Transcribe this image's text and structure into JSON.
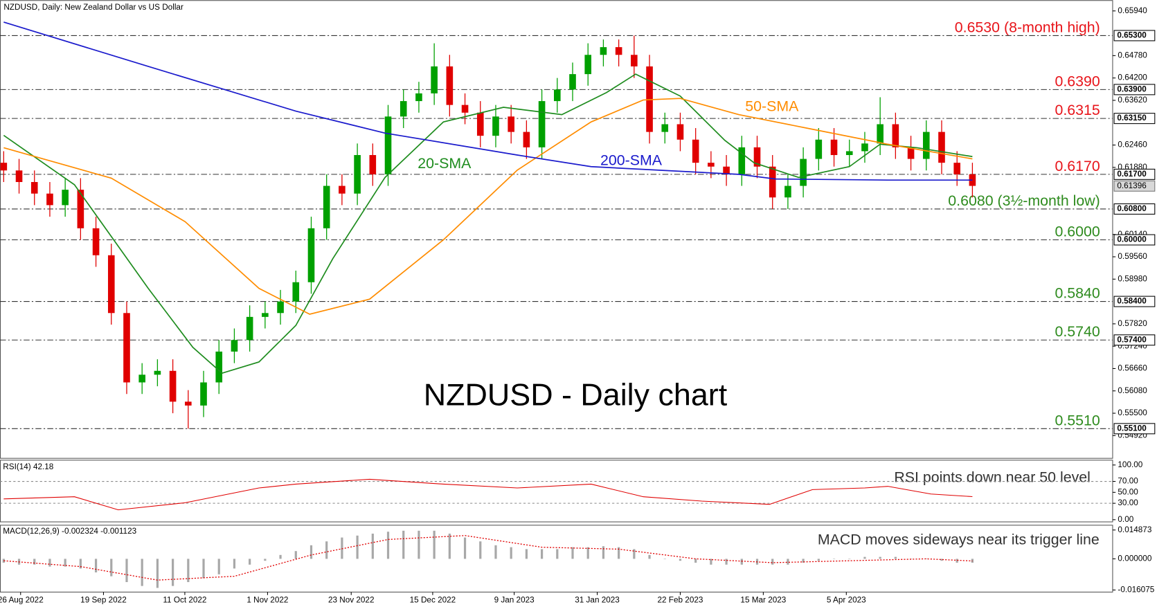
{
  "chart_data": [
    {
      "type": "candlestick",
      "header": "NZDUSD, Daily:  New Zealand Dollar vs US Dollar",
      "title": "NZDUSD - Daily chart",
      "xlim": [
        -0.24,
        72.12
      ],
      "ylim": [
        0.5433,
        0.6622
      ],
      "xticks": [
        {
          "value": 1.1,
          "label": "26 Aug 2022"
        },
        {
          "value": 6.49,
          "label": "19 Sep 2022"
        },
        {
          "value": 11.78,
          "label": "11 Oct 2022"
        },
        {
          "value": 17.16,
          "label": "1 Nov 2022"
        },
        {
          "value": 22.6,
          "label": "23 Nov 2022"
        },
        {
          "value": 27.9,
          "label": "15 Dec 2022"
        },
        {
          "value": 33.2,
          "label": "9 Jan 2023"
        },
        {
          "value": 38.6,
          "label": "31 Jan 2023"
        },
        {
          "value": 44.0,
          "label": "22 Feb 2023"
        },
        {
          "value": 49.4,
          "label": "15 Mar 2023"
        },
        {
          "value": 54.8,
          "label": "5 Apr 2023"
        }
      ],
      "yticks": [
        {
          "value": 0.6594,
          "label": "0.65940"
        },
        {
          "value": 0.6478,
          "label": "0.64780"
        },
        {
          "value": 0.642,
          "label": "0.64200"
        },
        {
          "value": 0.6362,
          "label": "0.63620"
        },
        {
          "value": 0.6246,
          "label": "0.62460"
        },
        {
          "value": 0.6188,
          "label": "0.61880"
        },
        {
          "value": 0.6014,
          "label": "0.60140"
        },
        {
          "value": 0.5956,
          "label": "0.59560"
        },
        {
          "value": 0.5898,
          "label": "0.58980"
        },
        {
          "value": 0.5782,
          "label": "0.57820"
        },
        {
          "value": 0.5724,
          "label": "0.57240"
        },
        {
          "value": 0.5666,
          "label": "0.56660"
        },
        {
          "value": 0.5608,
          "label": "0.56080"
        },
        {
          "value": 0.555,
          "label": "0.55500"
        },
        {
          "value": 0.5492,
          "label": "0.54920"
        }
      ],
      "open": [
        0.62,
        0.618,
        0.615,
        0.612,
        0.609,
        0.613,
        0.603,
        0.596,
        0.581,
        0.563,
        0.565,
        0.566,
        0.558,
        0.557,
        0.563,
        0.571,
        0.574,
        0.58,
        0.581,
        0.584,
        0.589,
        0.603,
        0.614,
        0.612,
        0.622,
        0.617,
        0.632,
        0.636,
        0.638,
        0.645,
        0.635,
        0.633,
        0.627,
        0.632,
        0.628,
        0.624,
        0.636,
        0.639,
        0.643,
        0.648,
        0.65,
        0.648,
        0.645,
        0.628,
        0.63,
        0.626,
        0.62,
        0.619,
        0.617,
        0.624,
        0.619,
        0.611,
        0.614,
        0.621,
        0.626,
        0.622,
        0.623,
        0.625,
        0.63,
        0.624,
        0.621,
        0.628,
        0.62,
        0.617
      ],
      "high": [
        0.623,
        0.621,
        0.618,
        0.615,
        0.616,
        0.616,
        0.606,
        0.599,
        0.584,
        0.568,
        0.569,
        0.569,
        0.561,
        0.566,
        0.574,
        0.577,
        0.583,
        0.584,
        0.587,
        0.592,
        0.606,
        0.617,
        0.617,
        0.625,
        0.625,
        0.635,
        0.639,
        0.641,
        0.651,
        0.648,
        0.638,
        0.636,
        0.635,
        0.635,
        0.631,
        0.639,
        0.642,
        0.646,
        0.651,
        0.652,
        0.652,
        0.653,
        0.648,
        0.633,
        0.633,
        0.629,
        0.623,
        0.622,
        0.627,
        0.627,
        0.622,
        0.617,
        0.624,
        0.629,
        0.629,
        0.626,
        0.628,
        0.637,
        0.633,
        0.627,
        0.631,
        0.631,
        0.623,
        0.62
      ],
      "low": [
        0.615,
        0.612,
        0.609,
        0.606,
        0.606,
        0.6,
        0.593,
        0.578,
        0.56,
        0.56,
        0.562,
        0.555,
        0.551,
        0.554,
        0.56,
        0.568,
        0.571,
        0.577,
        0.578,
        0.581,
        0.586,
        0.6,
        0.609,
        0.609,
        0.614,
        0.614,
        0.629,
        0.633,
        0.635,
        0.632,
        0.63,
        0.624,
        0.624,
        0.625,
        0.621,
        0.621,
        0.633,
        0.636,
        0.64,
        0.645,
        0.645,
        0.642,
        0.625,
        0.625,
        0.623,
        0.617,
        0.616,
        0.614,
        0.614,
        0.616,
        0.608,
        0.608,
        0.611,
        0.618,
        0.619,
        0.619,
        0.62,
        0.622,
        0.621,
        0.618,
        0.618,
        0.617,
        0.614,
        0.611
      ],
      "close": [
        0.618,
        0.615,
        0.612,
        0.609,
        0.613,
        0.603,
        0.596,
        0.581,
        0.563,
        0.565,
        0.566,
        0.558,
        0.557,
        0.563,
        0.571,
        0.574,
        0.58,
        0.581,
        0.584,
        0.589,
        0.603,
        0.614,
        0.612,
        0.622,
        0.617,
        0.632,
        0.636,
        0.638,
        0.645,
        0.635,
        0.633,
        0.627,
        0.632,
        0.628,
        0.624,
        0.636,
        0.639,
        0.643,
        0.648,
        0.65,
        0.648,
        0.645,
        0.628,
        0.63,
        0.626,
        0.62,
        0.619,
        0.617,
        0.624,
        0.619,
        0.611,
        0.614,
        0.621,
        0.626,
        0.622,
        0.623,
        0.625,
        0.63,
        0.624,
        0.621,
        0.628,
        0.62,
        0.617,
        0.614
      ],
      "up_color": "#00a000",
      "down_color": "#e00000",
      "series": [
        {
          "name": "20-SMA",
          "color": "#1e8c1e",
          "x": [
            0,
            4.6,
            9.4,
            12.3,
            14.2,
            16.6,
            19,
            21.4,
            24.8,
            28.6,
            32.5,
            36.3,
            39.2,
            41.1,
            44,
            46.9,
            48.8,
            51.7,
            55.0,
            57,
            59.4,
            63
          ],
          "values": [
            0.6271,
            0.6143,
            0.5874,
            0.5721,
            0.5654,
            0.5683,
            0.5778,
            0.5951,
            0.6162,
            0.6306,
            0.6344,
            0.6325,
            0.6382,
            0.643,
            0.6373,
            0.6258,
            0.62,
            0.6162,
            0.619,
            0.6248,
            0.6239,
            0.6216
          ]
        },
        {
          "name": "50-SMA",
          "color": "#ff8c00",
          "x": [
            0,
            7,
            11.8,
            16.6,
            19.9,
            23.8,
            28.6,
            33.4,
            38.2,
            41.6,
            44,
            47.8,
            52.6,
            57.5,
            63
          ],
          "values": [
            0.6239,
            0.616,
            0.6047,
            0.5874,
            0.5807,
            0.5846,
            0.6,
            0.6181,
            0.6306,
            0.6363,
            0.6367,
            0.6325,
            0.6287,
            0.6248,
            0.621
          ]
        },
        {
          "name": "200-SMA",
          "color": "#1a1acc",
          "x": [
            0,
            9.4,
            19,
            24.8,
            33.4,
            38.2,
            47.8,
            50.2,
            57.5,
            63
          ],
          "values": [
            0.6565,
            0.645,
            0.6334,
            0.6277,
            0.622,
            0.619,
            0.617,
            0.6158,
            0.6155,
            0.6155
          ]
        }
      ],
      "levels": [
        {
          "value": 0.653,
          "label": "0.65300",
          "note": "0.6530 (8-month high)",
          "color": "#e8141a"
        },
        {
          "value": 0.639,
          "label": "0.63900",
          "note": "0.6390",
          "color": "#e8141a"
        },
        {
          "value": 0.6315,
          "label": "0.63150",
          "note": "0.6315",
          "color": "#e8141a"
        },
        {
          "value": 0.617,
          "label": "0.61700",
          "note": "0.6170",
          "color": "#e8141a"
        },
        {
          "value": 0.608,
          "label": "0.60800",
          "note": "0.6080 (3½-month low)",
          "color": "#2e8b1e"
        },
        {
          "value": 0.6,
          "label": "0.60000",
          "note": "0.6000",
          "color": "#2e8b1e"
        },
        {
          "value": 0.584,
          "label": "0.58400",
          "note": "0.5840",
          "color": "#2e8b1e"
        },
        {
          "value": 0.574,
          "label": "0.57400",
          "note": "0.5740",
          "color": "#2e8b1e"
        },
        {
          "value": 0.551,
          "label": "0.55100",
          "note": "0.5510",
          "color": "#2e8b1e"
        }
      ],
      "last_price": {
        "value": 0.61396,
        "label": "0.61396"
      }
    },
    {
      "type": "line",
      "header": "RSI(14) 42.18",
      "annotation": "RSI points down near 50 level",
      "ylim": [
        -4,
        109.5
      ],
      "yticks": [
        {
          "value": 100,
          "label": "100.00"
        },
        {
          "value": 70,
          "label": "70.00"
        },
        {
          "value": 50,
          "label": "50.00"
        },
        {
          "value": 30,
          "label": "30.00"
        },
        {
          "value": 0,
          "label": "0.00"
        }
      ],
      "dashed_levels": [
        70,
        30
      ],
      "series": [
        {
          "color": "#e00000",
          "x": [
            0,
            4.6,
            7.45,
            11.8,
            16.6,
            19,
            23.8,
            28.6,
            33.4,
            38.2,
            41.6,
            45.4,
            49.8,
            52.6,
            56,
            57.5,
            60.3,
            63
          ],
          "values": [
            38,
            42,
            18,
            31,
            58,
            65,
            74,
            65,
            58,
            65,
            42,
            34,
            28,
            55,
            58,
            61,
            47,
            42.18
          ]
        }
      ]
    },
    {
      "type": "bar",
      "header": "MACD(12,26,9) -0.002324 -0.001123",
      "annotation": "MACD moves sideways near its trigger line",
      "ylim": [
        -0.01716,
        0.01754
      ],
      "yticks": [
        {
          "value": 0.014873,
          "label": "0.014873"
        },
        {
          "value": 0,
          "label": "0.000000"
        },
        {
          "value": -0.016075,
          "label": "-0.016075"
        }
      ],
      "color": "#a8a8a8",
      "values": [
        -0.002,
        -0.003,
        -0.003,
        -0.004,
        -0.004,
        -0.005,
        -0.007,
        -0.009,
        -0.012,
        -0.014,
        -0.015,
        -0.014,
        -0.012,
        -0.01,
        -0.008,
        -0.005,
        -0.003,
        -0.001,
        0.002,
        0.004,
        0.007,
        0.009,
        0.011,
        0.012,
        0.013,
        0.014,
        0.0145,
        0.0145,
        0.0145,
        0.013,
        0.011,
        0.009,
        0.007,
        0.006,
        0.005,
        0.005,
        0.005,
        0.006,
        0.006,
        0.0065,
        0.006,
        0.005,
        0.002,
        0.0,
        -0.001,
        -0.002,
        -0.003,
        -0.003,
        -0.003,
        -0.003,
        -0.003,
        -0.003,
        -0.002,
        -0.001,
        0.0,
        0.0,
        0.001,
        0.001,
        0.001,
        0.0,
        0.0,
        -0.001,
        -0.002,
        -0.002
      ],
      "signal": {
        "color": "#e00000",
        "x": [
          0,
          5,
          10,
          15,
          20,
          25,
          30,
          35,
          40,
          45,
          50,
          55,
          60,
          63
        ],
        "values": [
          -0.001,
          -0.004,
          -0.011,
          -0.009,
          0.002,
          0.01,
          0.012,
          0.006,
          0.005,
          0.0,
          -0.002,
          -0.001,
          0.0,
          -0.001123
        ]
      }
    }
  ]
}
